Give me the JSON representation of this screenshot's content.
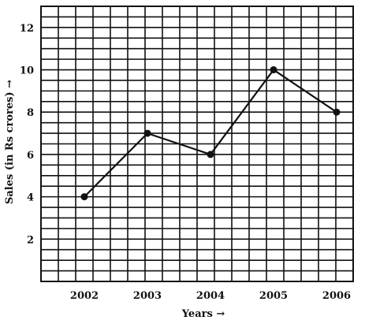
{
  "chart_data": {
    "type": "line",
    "categories": [
      "2002",
      "2003",
      "2004",
      "2005",
      "2006"
    ],
    "values": [
      4,
      7,
      6,
      10,
      8
    ],
    "xlabel": "Years →",
    "ylabel": "Sales (in Rs crores) →",
    "ylim": [
      0,
      13
    ],
    "y_ticks": [
      2,
      4,
      6,
      8,
      10,
      12
    ],
    "grid": true,
    "colors": {
      "line": "#111111",
      "grid": "#111111",
      "marker": "#111111"
    }
  }
}
